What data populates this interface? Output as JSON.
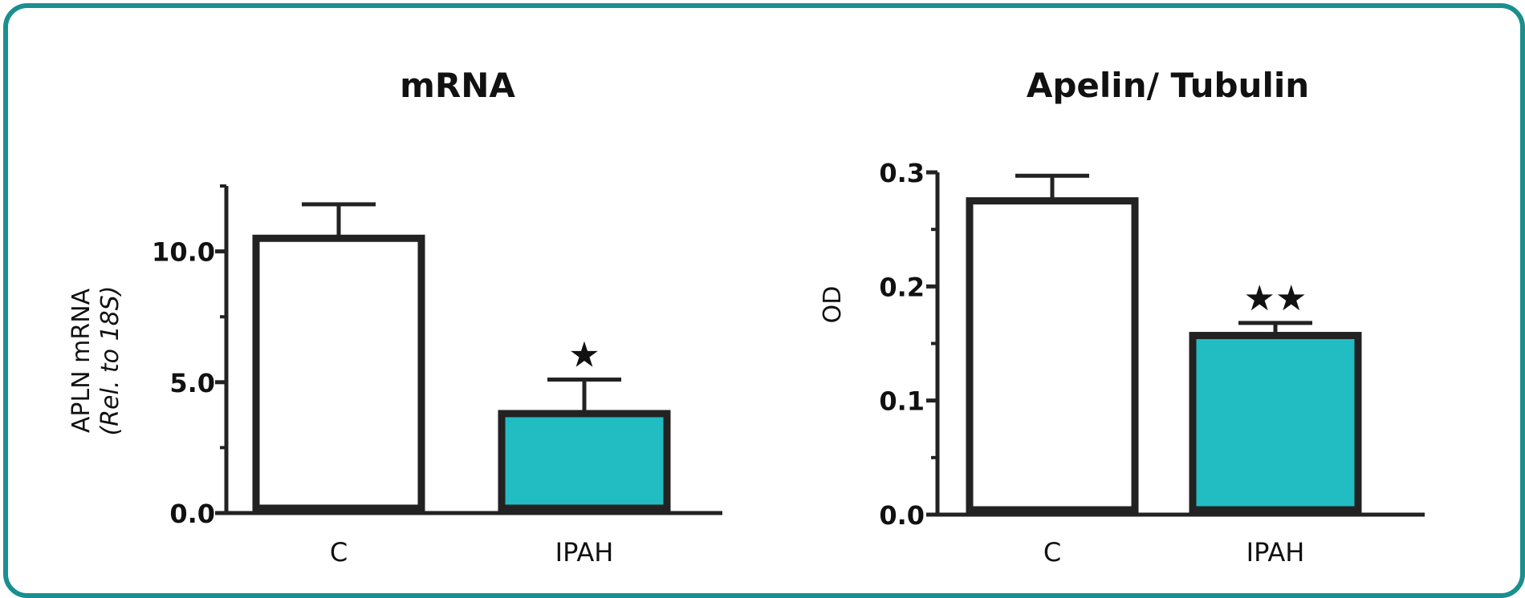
{
  "chart_data": [
    {
      "type": "bar",
      "title": "mRNA",
      "ylabel": "APLN mRNA",
      "ylabel_sub": "(Rel. to 18S)",
      "categories": [
        "C",
        "IPAH"
      ],
      "values": [
        10.5,
        3.8
      ],
      "errors": [
        1.3,
        1.3
      ],
      "significance": [
        "",
        "★"
      ],
      "bar_colors": [
        "#ffffff",
        "#22bcc3"
      ],
      "ylim": [
        0,
        12.5
      ],
      "yticks": [
        0.0,
        5.0,
        10.0
      ],
      "ytick_labels": [
        "0.0",
        "5.0",
        "10.0"
      ],
      "grid": false,
      "legend": "none"
    },
    {
      "type": "bar",
      "title": "Apelin/ Tubulin",
      "ylabel": "OD",
      "ylabel_sub": "",
      "categories": [
        "C",
        "IPAH"
      ],
      "values": [
        0.275,
        0.157
      ],
      "errors": [
        0.022,
        0.011
      ],
      "significance": [
        "",
        "★★"
      ],
      "bar_colors": [
        "#ffffff",
        "#22bcc3"
      ],
      "ylim": [
        0,
        0.3
      ],
      "yticks": [
        0.0,
        0.1,
        0.2,
        0.3
      ],
      "ytick_labels": [
        "0.0",
        "0.1",
        "0.2",
        "0.3"
      ],
      "grid": false,
      "legend": "none"
    }
  ]
}
